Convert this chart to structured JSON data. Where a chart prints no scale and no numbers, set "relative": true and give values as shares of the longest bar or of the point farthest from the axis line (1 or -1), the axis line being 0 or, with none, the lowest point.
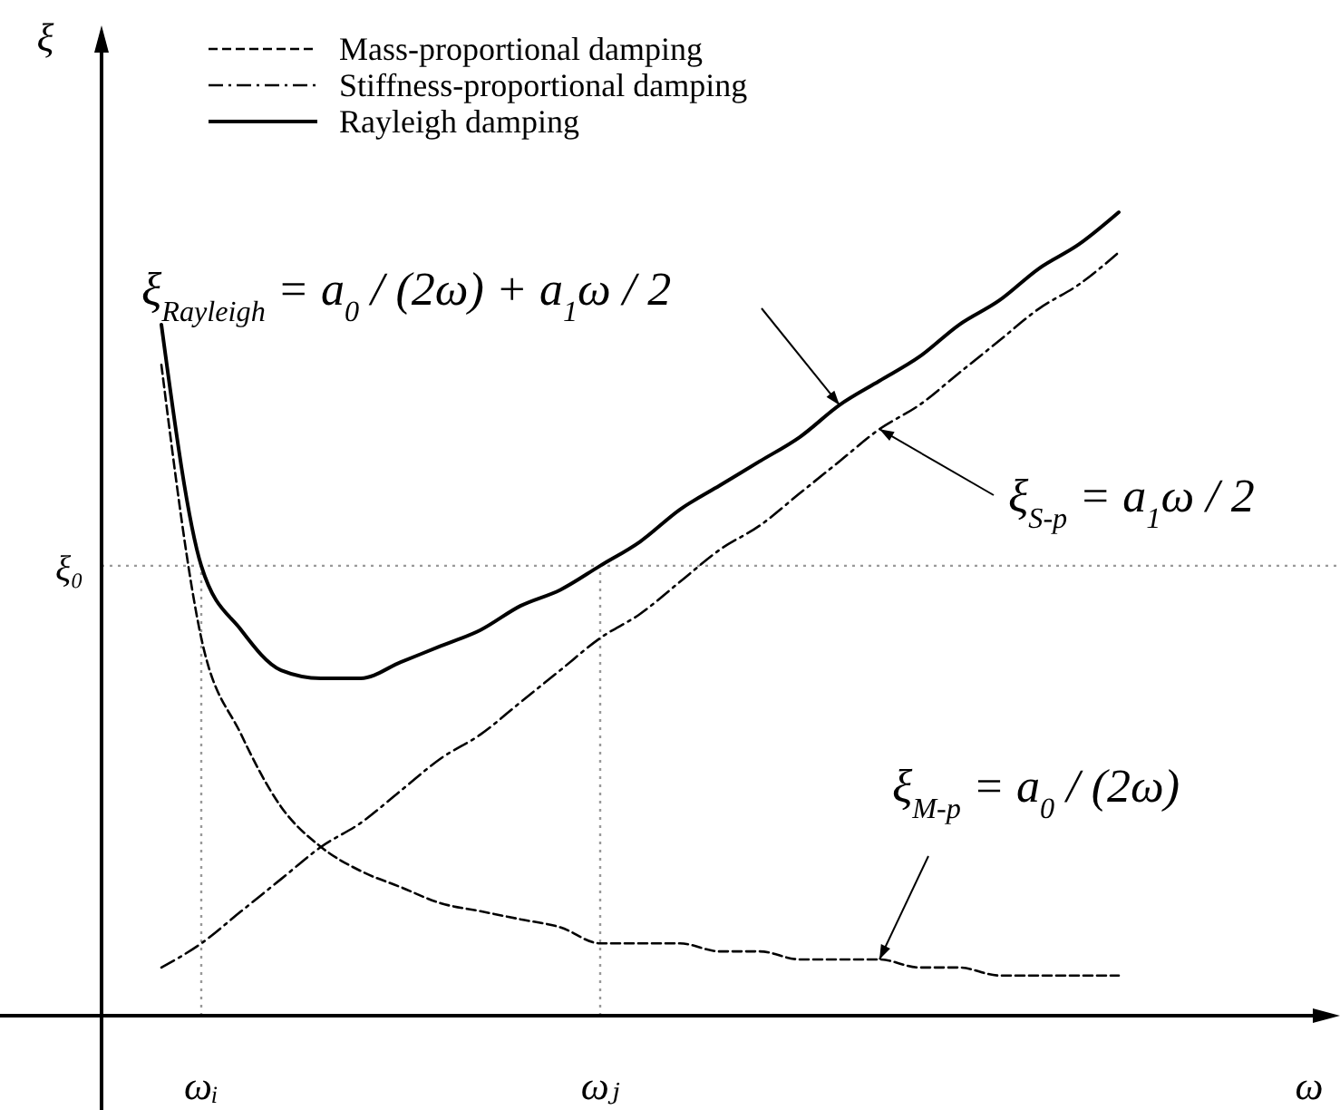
{
  "chart_data": {
    "type": "line",
    "relative": true,
    "xlabel": "ω",
    "ylabel": "ξ",
    "legend": "top left",
    "grid": false,
    "marker": "none",
    "categories": [
      null,
      "ωᵢ",
      null,
      null,
      null,
      null,
      null,
      null,
      null,
      null,
      null,
      "ωⱼ",
      null,
      null,
      null,
      null,
      null,
      null,
      null,
      null,
      null,
      null,
      null,
      null,
      null
    ],
    "series": [
      {
        "name": "Mass-proportional damping",
        "color": "#000000",
        "line_style": "dashed",
        "values": [
          0.81,
          0.47,
          0.35,
          0.26,
          0.21,
          0.18,
          0.16,
          0.14,
          0.13,
          0.12,
          0.11,
          0.09,
          0.09,
          0.09,
          0.08,
          0.08,
          0.07,
          0.07,
          0.07,
          0.06,
          0.06,
          0.05,
          0.05,
          0.05,
          0.05
        ]
      },
      {
        "name": "Stiffness-proportional damping",
        "color": "#000000",
        "line_style": "dashdot",
        "values": [
          0.06,
          0.09,
          0.13,
          0.17,
          0.21,
          0.24,
          0.28,
          0.32,
          0.35,
          0.39,
          0.43,
          0.47,
          0.5,
          0.54,
          0.58,
          0.61,
          0.65,
          0.69,
          0.73,
          0.76,
          0.8,
          0.84,
          0.88,
          0.91,
          0.95
        ]
      },
      {
        "name": "Rayleigh damping",
        "color": "#000000",
        "line_style": "solid",
        "values": [
          0.86,
          0.56,
          0.48,
          0.43,
          0.42,
          0.42,
          0.44,
          0.46,
          0.48,
          0.51,
          0.53,
          0.56,
          0.59,
          0.63,
          0.66,
          0.69,
          0.72,
          0.76,
          0.79,
          0.82,
          0.86,
          0.89,
          0.93,
          0.96,
          1
        ]
      }
    ],
    "ref_lines": [
      {
        "axis": "y",
        "value": 0.56,
        "label": "ξ₀",
        "line_style": "dotted",
        "color": "#999999"
      },
      {
        "axis": "x",
        "value": "ωᵢ",
        "line_style": "dotted",
        "color": "#999999"
      },
      {
        "axis": "x",
        "value": "ωⱼ",
        "line_style": "dotted",
        "color": "#999999"
      }
    ],
    "annotations": [
      "ξ$_{Rayleigh}$ = a$_{0}$ / (2ω) + a$_{1}$ω / 2",
      "ξ$_{S-p}$ = a$_{1}$ω / 2",
      "ξ$_{M-p}$ = a$_{0}$ / (2ω)"
    ]
  }
}
